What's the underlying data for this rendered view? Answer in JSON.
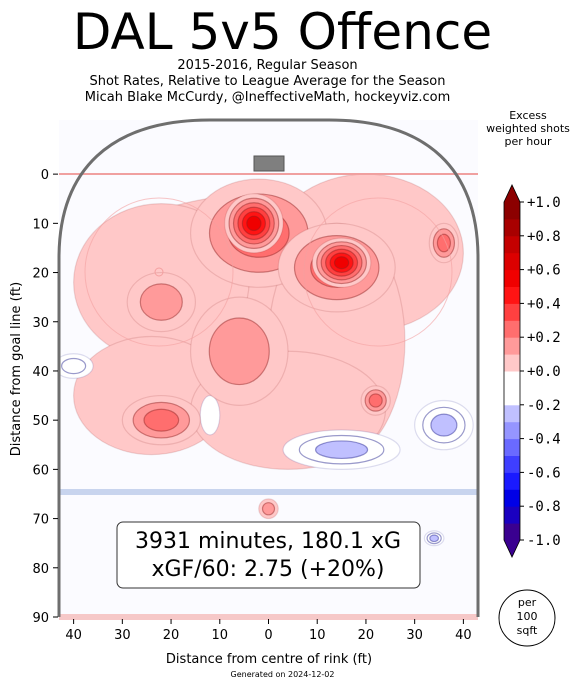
{
  "chart_data": {
    "type": "heatmap",
    "title": "DAL 5v5 Offence",
    "subtitle_lines": [
      "2015-2016, Regular Season",
      "Shot Rates, Relative to League Average for the Season",
      "Micah Blake McCurdy, @IneffectiveMath, hockeyviz.com"
    ],
    "xlabel": "Distance from centre of rink (ft)",
    "ylabel": "Distance from goal line (ft)",
    "xlim": [
      -43,
      43
    ],
    "ylim": [
      90,
      -11
    ],
    "x_ticks": [
      -40,
      -30,
      -20,
      -10,
      0,
      10,
      20,
      30,
      40
    ],
    "x_tick_labels": [
      "40",
      "30",
      "20",
      "10",
      "0",
      "10",
      "20",
      "30",
      "40"
    ],
    "y_ticks": [
      0,
      10,
      20,
      30,
      40,
      50,
      60,
      70,
      80,
      90
    ],
    "y_tick_labels": [
      "0",
      "10",
      "20",
      "30",
      "40",
      "50",
      "60",
      "70",
      "80",
      "90"
    ],
    "colorbar": {
      "title_lines": [
        "Excess",
        "weighted shots",
        "per hour"
      ],
      "range": [
        -1.0,
        1.0
      ],
      "levels": [
        -1.0,
        -0.9,
        -0.8,
        -0.7,
        -0.6,
        -0.5,
        -0.4,
        -0.3,
        -0.2,
        -0.1,
        0.0,
        0.1,
        0.2,
        0.3,
        0.4,
        0.5,
        0.6,
        0.7,
        0.8,
        0.9,
        1.0
      ],
      "colors": [
        "#3a0090",
        "#1a00c0",
        "#0000e6",
        "#1a1aff",
        "#3f3fff",
        "#6a6aff",
        "#9595ff",
        "#c0c0ff",
        "#ffffff",
        "#ffffff",
        "#ffc8c8",
        "#ff9a9a",
        "#ff6e6e",
        "#ff4040",
        "#ff1414",
        "#f00000",
        "#dc0000",
        "#c40000",
        "#a80000",
        "#8c0000"
      ],
      "tick_values": [
        1.0,
        0.8,
        0.6,
        0.4,
        0.2,
        0.0,
        -0.2,
        -0.4,
        -0.6,
        -0.8,
        -1.0
      ],
      "tick_labels": [
        "+1.0",
        "+0.8",
        "+0.6",
        "+0.4",
        "+0.2",
        "+0.0",
        "-0.2",
        "-0.4",
        "-0.6",
        "-0.8",
        "-1.0"
      ]
    },
    "hotspots": [
      {
        "x": 0,
        "y": 18,
        "rx": 34,
        "ry": 14,
        "value": 0.1
      },
      {
        "x": -22,
        "y": 22,
        "rx": 18,
        "ry": 16,
        "value": 0.1
      },
      {
        "x": 20,
        "y": 16,
        "rx": 20,
        "ry": 16,
        "value": 0.1
      },
      {
        "x": 14,
        "y": 34,
        "rx": 14,
        "ry": 24,
        "value": 0.1
      },
      {
        "x": -24,
        "y": 45,
        "rx": 16,
        "ry": 12,
        "value": 0.1
      },
      {
        "x": 4,
        "y": 48,
        "rx": 20,
        "ry": 12,
        "value": 0.1
      },
      {
        "x": -2,
        "y": 12,
        "rx": 14,
        "ry": 11,
        "value": 0.3
      },
      {
        "x": 14,
        "y": 19,
        "rx": 12,
        "ry": 9,
        "value": 0.3
      },
      {
        "x": -6,
        "y": 36,
        "rx": 10,
        "ry": 11,
        "value": 0.2
      },
      {
        "x": -22,
        "y": 26,
        "rx": 7,
        "ry": 6,
        "value": 0.2
      },
      {
        "x": -22,
        "y": 50,
        "rx": 8,
        "ry": 5,
        "value": 0.3
      },
      {
        "x": 36,
        "y": 14,
        "rx": 3,
        "ry": 4,
        "value": 0.3
      },
      {
        "x": 22,
        "y": 46,
        "rx": 3,
        "ry": 3,
        "value": 0.3
      },
      {
        "x": 0,
        "y": 68,
        "rx": 2,
        "ry": 2,
        "value": 0.2
      },
      {
        "x": -3,
        "y": 10,
        "rx": 6,
        "ry": 6,
        "value": 0.6
      },
      {
        "x": 15,
        "y": 18,
        "rx": 6,
        "ry": 5,
        "value": 0.55
      },
      {
        "x": -40,
        "y": 39,
        "rx": 4,
        "ry": 2.5,
        "value": -0.2
      },
      {
        "x": 15,
        "y": 56,
        "rx": 12,
        "ry": 4,
        "value": -0.25
      },
      {
        "x": 36,
        "y": 51,
        "rx": 6,
        "ry": 5,
        "value": -0.25
      },
      {
        "x": 34,
        "y": 74,
        "rx": 2,
        "ry": 1.5,
        "value": -0.3
      },
      {
        "x": -12,
        "y": 49,
        "rx": 2,
        "ry": 4,
        "value": -0.15
      }
    ],
    "annotation_lines": [
      "3931 minutes, 180.1 xG",
      "xGF/60: 2.75 (+20%)"
    ],
    "per_area_lines": [
      "per",
      "100",
      "sqft"
    ],
    "footer": "Generated on 2024-12-02"
  }
}
